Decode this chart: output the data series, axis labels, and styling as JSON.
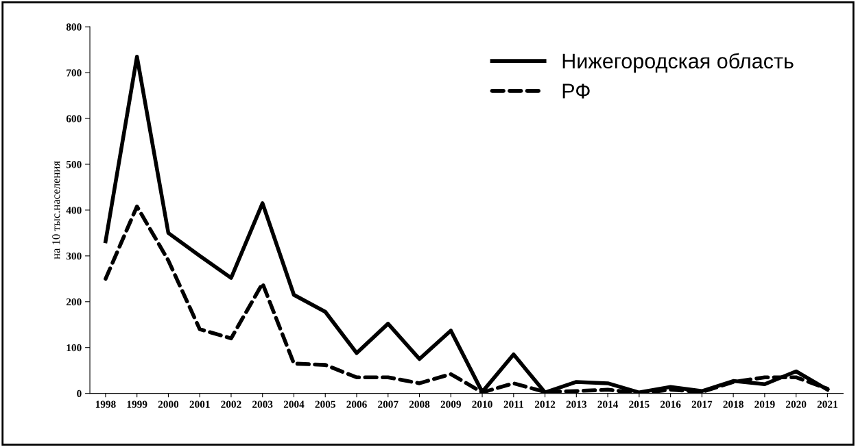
{
  "chart_data": {
    "type": "line",
    "ylabel": "на 10 тыс.населения",
    "categories": [
      "1998",
      "1999",
      "2000",
      "2001",
      "2002",
      "2003",
      "2004",
      "2005",
      "2006",
      "2007",
      "2008",
      "2009",
      "2010",
      "2011",
      "2012",
      "2013",
      "2014",
      "2015",
      "2016",
      "2017",
      "2018",
      "2019",
      "2020",
      "2021"
    ],
    "series": [
      {
        "name": "Нижегородская область",
        "color": "#000000",
        "line_style": "solid",
        "values": [
          332,
          735,
          350,
          300,
          252,
          415,
          215,
          178,
          88,
          152,
          75,
          137,
          3,
          85,
          2,
          25,
          22,
          2,
          14,
          5,
          27,
          20,
          48,
          8
        ]
      },
      {
        "name": "РФ",
        "color": "#000000",
        "line_style": "dashed",
        "values": [
          250,
          408,
          290,
          140,
          120,
          240,
          65,
          62,
          35,
          35,
          22,
          42,
          2,
          22,
          3,
          5,
          8,
          0,
          8,
          3,
          25,
          35,
          35,
          10
        ]
      }
    ],
    "ylim": [
      0,
      800
    ],
    "yticks": [
      0,
      100,
      200,
      300,
      400,
      500,
      600,
      700,
      800
    ],
    "grid": false,
    "legend": "top right",
    "marker": "none"
  }
}
